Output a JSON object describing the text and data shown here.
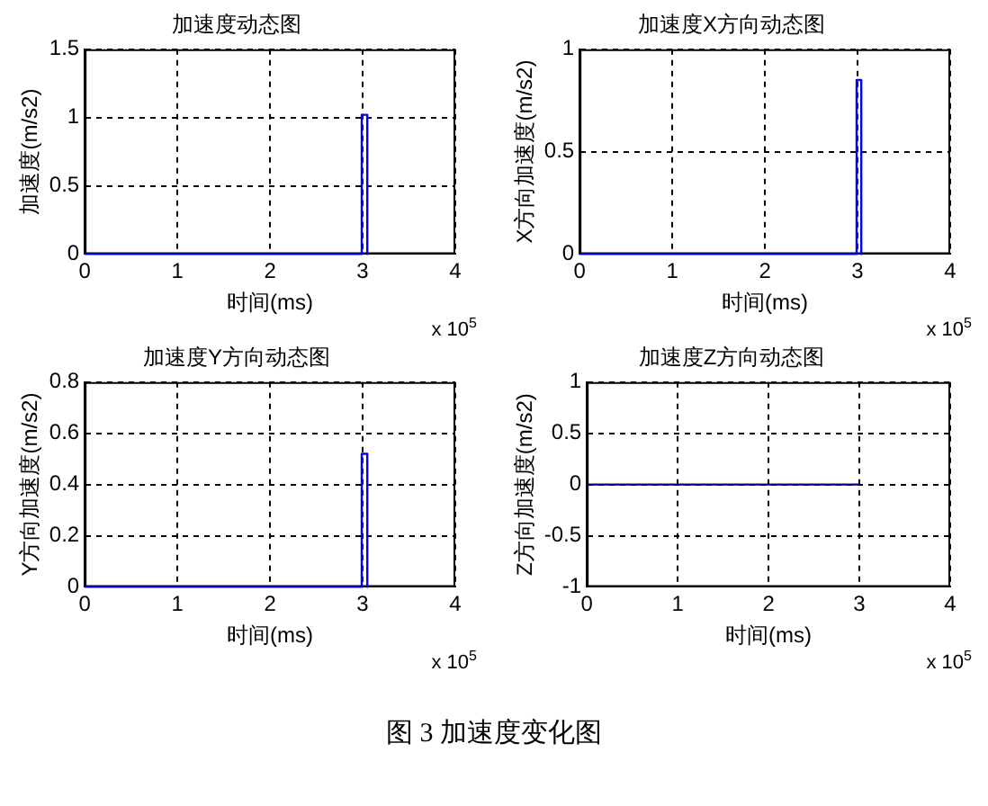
{
  "chart_data": [
    {
      "type": "line",
      "title": "加速度动态图",
      "xlabel": "时间(ms)",
      "ylabel": "加速度(m/s2)",
      "annotations": [
        "x 10$^{5}$"
      ],
      "x": [
        0,
        2.99,
        2.99,
        3.05,
        3.05
      ],
      "series": [
        {
          "color": "#0000ff",
          "values": [
            0,
            0,
            1.02,
            1.02,
            0
          ]
        }
      ],
      "xlim": [
        0,
        4
      ],
      "xticks": [
        0,
        1,
        2,
        3,
        4
      ],
      "ylim": [
        0,
        1.5
      ],
      "yticks": [
        0,
        0.5,
        1,
        1.5
      ],
      "grid": true,
      "legend": false,
      "marker": "none",
      "line_style": "solid"
    },
    {
      "type": "line",
      "title": "加速度X方向动态图",
      "xlabel": "时间(ms)",
      "ylabel": "X方向加速度(m/s2)",
      "annotations": [
        "x 10$^{5}$"
      ],
      "x": [
        0,
        2.99,
        2.99,
        3.04,
        3.04
      ],
      "series": [
        {
          "color": "#0000ff",
          "values": [
            0,
            0,
            0.85,
            0.85,
            0
          ]
        }
      ],
      "xlim": [
        0,
        4
      ],
      "xticks": [
        0,
        1,
        2,
        3,
        4
      ],
      "ylim": [
        0,
        1
      ],
      "yticks": [
        0,
        0.5,
        1
      ],
      "grid": true,
      "legend": false,
      "marker": "none",
      "line_style": "solid"
    },
    {
      "type": "line",
      "title": "加速度Y方向动态图",
      "xlabel": "时间(ms)",
      "ylabel": "Y方向加速度(m/s2)",
      "annotations": [
        "x 10$^{5}$"
      ],
      "x": [
        0,
        2.99,
        2.99,
        3.05,
        3.05
      ],
      "series": [
        {
          "color": "#0000ff",
          "values": [
            0,
            0,
            0.52,
            0.52,
            0
          ]
        }
      ],
      "xlim": [
        0,
        4
      ],
      "xticks": [
        0,
        1,
        2,
        3,
        4
      ],
      "ylim": [
        0,
        0.8
      ],
      "yticks": [
        0,
        0.2,
        0.4,
        0.6,
        0.8
      ],
      "grid": true,
      "legend": false,
      "marker": "none",
      "line_style": "solid"
    },
    {
      "type": "line",
      "title": "加速度Z方向动态图",
      "xlabel": "时间(ms)",
      "ylabel": "Z方向加速度(m/s2)",
      "annotations": [
        "x 10$^{5}$",
        "图 3 加速度变化图"
      ],
      "x": [
        0,
        3
      ],
      "series": [
        {
          "color": "#000080",
          "values": [
            0,
            0
          ]
        }
      ],
      "xlim": [
        0,
        4
      ],
      "xticks": [
        0,
        1,
        2,
        3,
        4
      ],
      "ylim": [
        -1,
        1
      ],
      "yticks": [
        -1,
        -0.5,
        0,
        0.5,
        1
      ],
      "grid": true,
      "legend": false,
      "marker": "none",
      "line_style": "solid"
    }
  ]
}
